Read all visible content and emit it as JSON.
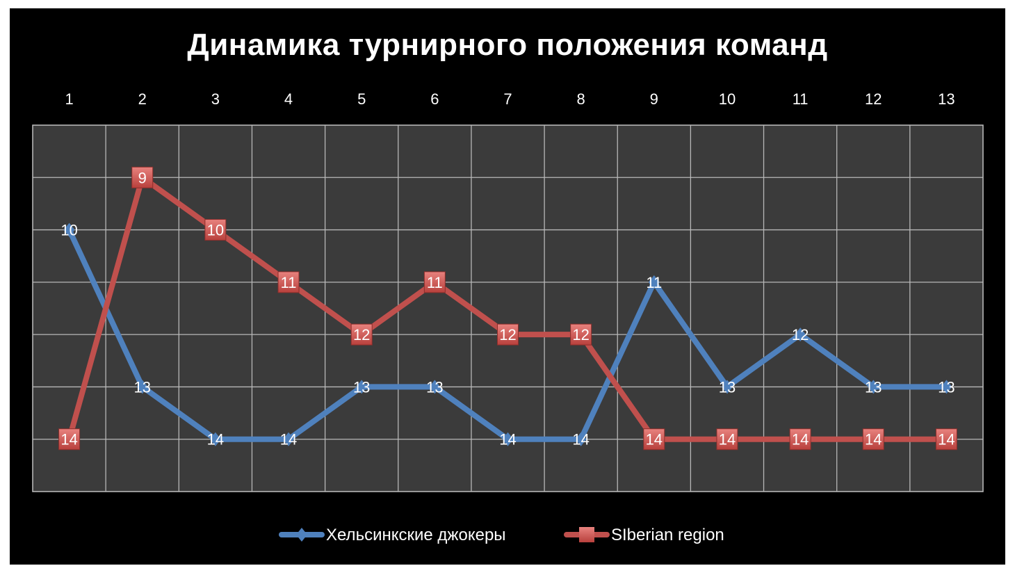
{
  "chart_data": {
    "type": "line",
    "title": "Динамика турнирного положения команд",
    "x": [
      1,
      2,
      3,
      4,
      5,
      6,
      7,
      8,
      9,
      10,
      11,
      12,
      13
    ],
    "y_axis": {
      "reversed": true,
      "range": [
        8,
        15
      ],
      "tick_labels_visible": false
    },
    "x_axis": {
      "position": "top"
    },
    "grid": true,
    "legend": "bottom",
    "series": [
      {
        "name": "Хельсинкские джокеры",
        "color": "#4f81bd",
        "marker": "diamond",
        "values": [
          10,
          13,
          14,
          14,
          13,
          13,
          14,
          14,
          11,
          13,
          12,
          13,
          13
        ]
      },
      {
        "name": "SIberian region",
        "color": "#c0504d",
        "marker": "square",
        "values": [
          14,
          9,
          10,
          11,
          12,
          11,
          12,
          12,
          14,
          14,
          14,
          14,
          14
        ]
      }
    ]
  }
}
